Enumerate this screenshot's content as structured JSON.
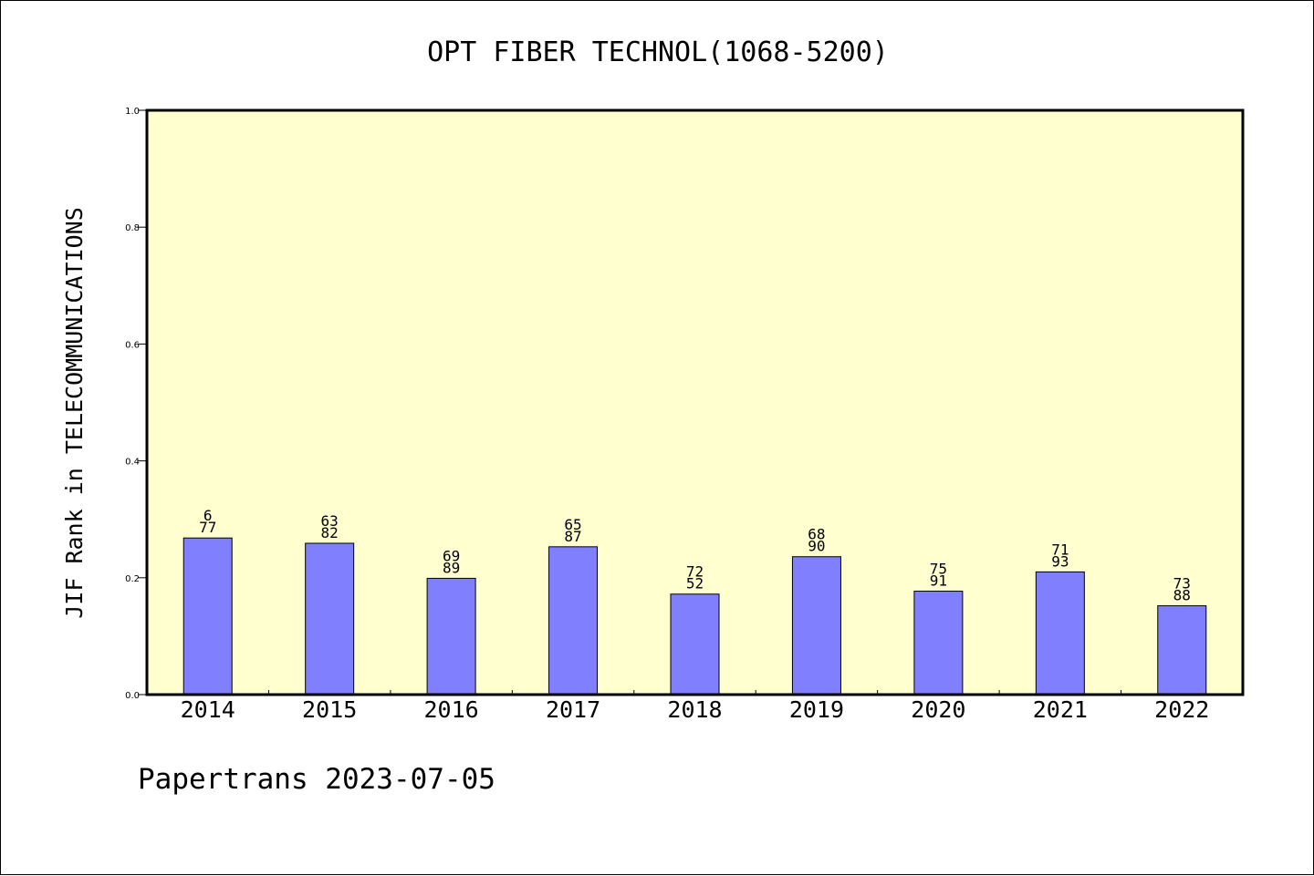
{
  "chart_data": {
    "type": "bar",
    "title": "OPT FIBER TECHNOL(1068-5200)",
    "xlabel": "",
    "ylabel": "JIF Rank in TELECOMMUNICATIONS",
    "ylim": [
      0,
      1.0
    ],
    "yticks": [
      "0.0",
      "0.2",
      "0.4",
      "0.6",
      "0.8",
      "1.0"
    ],
    "grid": false,
    "categories": [
      "2014",
      "2015",
      "2016",
      "2017",
      "2018",
      "2019",
      "2020",
      "2021",
      "2022"
    ],
    "values": [
      0.268,
      0.259,
      0.199,
      0.253,
      0.172,
      0.236,
      0.177,
      0.21,
      0.152
    ],
    "rank_labels": [
      "6",
      "63",
      "69",
      "65",
      "72",
      "68",
      "75",
      "71",
      "73"
    ],
    "total_labels": [
      "77",
      "82",
      "89",
      "87",
      "52",
      "90",
      "91",
      "93",
      "88"
    ],
    "colors": {
      "bar": "#8080ff",
      "plot_background": "#ffffd0",
      "axis": "#000000"
    }
  },
  "footer": "Papertrans 2023-07-05"
}
